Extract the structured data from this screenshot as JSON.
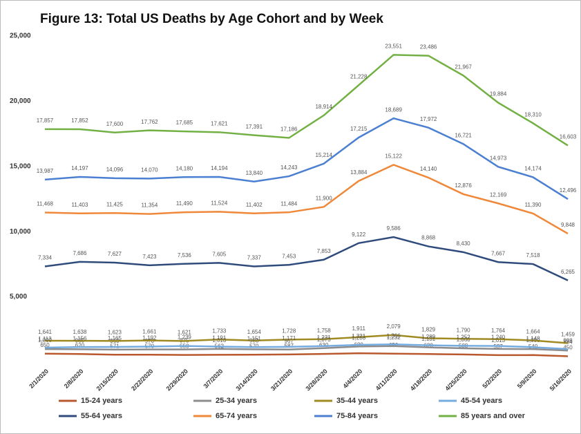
{
  "chart_data": {
    "type": "line",
    "title": "Figure 13: Total US Deaths by Age Cohort and by Week",
    "categories": [
      "2/1/2020",
      "2/8/2020",
      "2/15/2020",
      "2/22/2020",
      "2/29/2020",
      "3/7/2020",
      "3/14/2020",
      "3/21/2020",
      "3/28/2020",
      "4/4/2020",
      "4/11/2020",
      "4/18/2020",
      "4/25/2020",
      "5/2/2020",
      "5/9/2020",
      "5/16/2020"
    ],
    "ylim": [
      0,
      25000
    ],
    "yticks": [
      {
        "value": 5000,
        "label": "5,000"
      },
      {
        "value": 10000,
        "label": "10,000"
      },
      {
        "value": 15000,
        "label": "15,000"
      },
      {
        "value": 20000,
        "label": "20,000"
      },
      {
        "value": 25000,
        "label": "25,000"
      }
    ],
    "grid": false,
    "legend": "bottom",
    "series": [
      {
        "name": "15-24 years",
        "color": "#b8582c",
        "values": [
          650,
          620,
          571,
          570,
          550,
          562,
          570,
          587,
          630,
          680,
          650,
          620,
          588,
          537,
          540,
          450
        ],
        "value_labels": [
          "650",
          "620",
          "571",
          "570",
          "550",
          "562",
          "570",
          "587",
          "630",
          "680",
          "650",
          "620",
          "588",
          "537",
          "540",
          "450"
        ]
      },
      {
        "name": "25-34 years",
        "color": "#8c8c8c",
        "values": [
          1000,
          985,
          960,
          970,
          975,
          1010,
          983,
          967,
          1073,
          1200,
          1232,
          1131,
          1060,
          1013,
          1000,
          884
        ],
        "value_labels": [
          "1,000",
          "985",
          "960",
          "970",
          "975",
          "1,010",
          "983",
          "967",
          "1,073",
          "1,200",
          "1,232",
          "1,131",
          "1,060",
          "1,013",
          "1,000",
          "884"
        ]
      },
      {
        "name": "35-44 years",
        "color": "#a08a22",
        "values": [
          1641,
          1638,
          1623,
          1661,
          1621,
          1733,
          1654,
          1728,
          1758,
          1911,
          2079,
          1829,
          1790,
          1764,
          1664,
          1459
        ],
        "value_labels": [
          "1,641",
          "1,638",
          "1,623",
          "1,661",
          "1,621",
          "1,733",
          "1,654",
          "1,728",
          "1,758",
          "1,911",
          "2,079",
          "1,829",
          "1,790",
          "1,764",
          "1,664",
          "1,459"
        ]
      },
      {
        "name": "45-54 years",
        "color": "#74acdf",
        "values": [
          1113,
          1156,
          1165,
          1192,
          1239,
          1191,
          1151,
          1171,
          1231,
          1321,
          1366,
          1289,
          1252,
          1240,
          1148,
          998
        ],
        "value_labels": [
          "1,113",
          "1,156",
          "1,165",
          "1,192",
          "1,239",
          "1,191",
          "1,151",
          "1,171",
          "1,231",
          "1,321",
          "1,366",
          "1,289",
          "1,252",
          "1,240",
          "1,148",
          "998"
        ]
      },
      {
        "name": "55-64 years",
        "color": "#2f4b7c",
        "values": [
          7334,
          7686,
          7627,
          7423,
          7536,
          7605,
          7337,
          7453,
          7853,
          9122,
          9586,
          8868,
          8430,
          7667,
          7518,
          6265
        ],
        "value_labels": [
          "7,334",
          "7,686",
          "7,627",
          "7,423",
          "7,536",
          "7,605",
          "7,337",
          "7,453",
          "7,853",
          "9,122",
          "9,586",
          "8,868",
          "8,430",
          "7,667",
          "7,518",
          "6,265"
        ]
      },
      {
        "name": "65-74 years",
        "color": "#f0883a",
        "values": [
          11468,
          11403,
          11425,
          11354,
          11490,
          11524,
          11402,
          11484,
          11900,
          13884,
          15122,
          14140,
          12876,
          12169,
          11390,
          9848
        ],
        "value_labels": [
          "11,468",
          "11,403",
          "11,425",
          "11,354",
          "11,490",
          "11,524",
          "11,402",
          "11,484",
          "11,900",
          "13,884",
          "15,122",
          "14,140",
          "12,876",
          "12,169",
          "11,390",
          "9,848"
        ]
      },
      {
        "name": "75-84 years",
        "color": "#4b7fd1",
        "values": [
          13987,
          14197,
          14096,
          14070,
          14180,
          14194,
          13840,
          14243,
          15214,
          17215,
          18689,
          17972,
          16721,
          14973,
          14174,
          12496
        ],
        "value_labels": [
          "13,987",
          "14,197",
          "14,096",
          "14,070",
          "14,180",
          "14,194",
          "13,840",
          "14,243",
          "15,214",
          "17,215",
          "18,689",
          "17,972",
          "16,721",
          "14,973",
          "14,174",
          "12,496"
        ]
      },
      {
        "name": "85 years and over",
        "color": "#72b043",
        "values": [
          17857,
          17852,
          17600,
          17762,
          17685,
          17621,
          17391,
          17186,
          18914,
          21228,
          23551,
          23486,
          21967,
          19884,
          18310,
          16603
        ],
        "value_labels": [
          "17,857",
          "17,852",
          "17,600",
          "17,762",
          "17,685",
          "17,621",
          "17,391",
          "17,186",
          "18,914",
          "21,228",
          "23,551",
          "23,486",
          "21,967",
          "19,884",
          "18,310",
          "16,603"
        ]
      }
    ]
  }
}
